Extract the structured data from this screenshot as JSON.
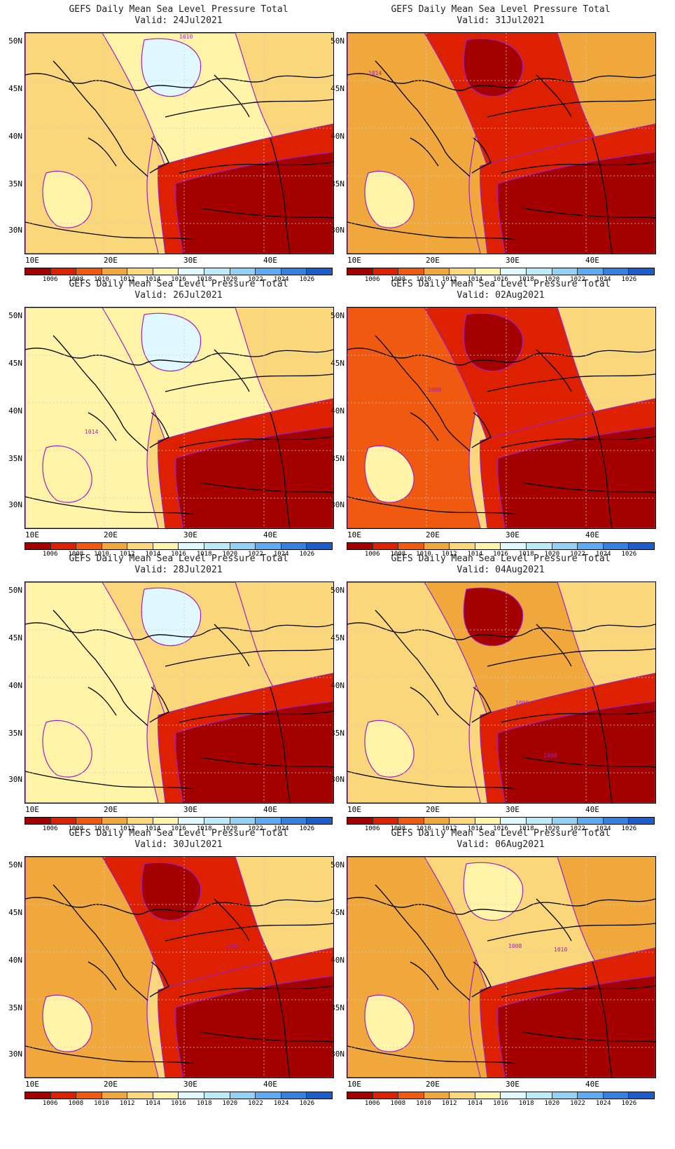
{
  "title": "GEFS Daily Mean Sea Level Pressure Total",
  "panels": [
    {
      "valid": "Valid: 24Jul2021"
    },
    {
      "valid": "Valid: 31Jul2021"
    },
    {
      "valid": "Valid: 26Jul2021"
    },
    {
      "valid": "Valid: 02Aug2021"
    },
    {
      "valid": "Valid: 28Jul2021"
    },
    {
      "valid": "Valid: 04Aug2021"
    },
    {
      "valid": "Valid: 30Jul2021"
    },
    {
      "valid": "Valid: 06Aug2021"
    }
  ],
  "lat_labels": [
    "50N",
    "45N",
    "40N",
    "35N",
    "30N"
  ],
  "lon_labels": [
    "10E",
    "20E",
    "30E",
    "40E"
  ],
  "colorbar": {
    "labels": [
      "1006",
      "1008",
      "1010",
      "1012",
      "1014",
      "1016",
      "1018",
      "1020",
      "1022",
      "1024",
      "1026"
    ],
    "colors": [
      "#a50000",
      "#dd2000",
      "#f05a10",
      "#f0a83c",
      "#fad77a",
      "#fff4a8",
      "#e0f8ff",
      "#bcecfa",
      "#92d2f5",
      "#5eaaf0",
      "#3480e0",
      "#1a5ecc"
    ]
  },
  "contour_labels": [
    "1010",
    "1014",
    "1014",
    "1008",
    "1008",
    "1008",
    "1006",
    "1008",
    "1010",
    "1012"
  ]
}
